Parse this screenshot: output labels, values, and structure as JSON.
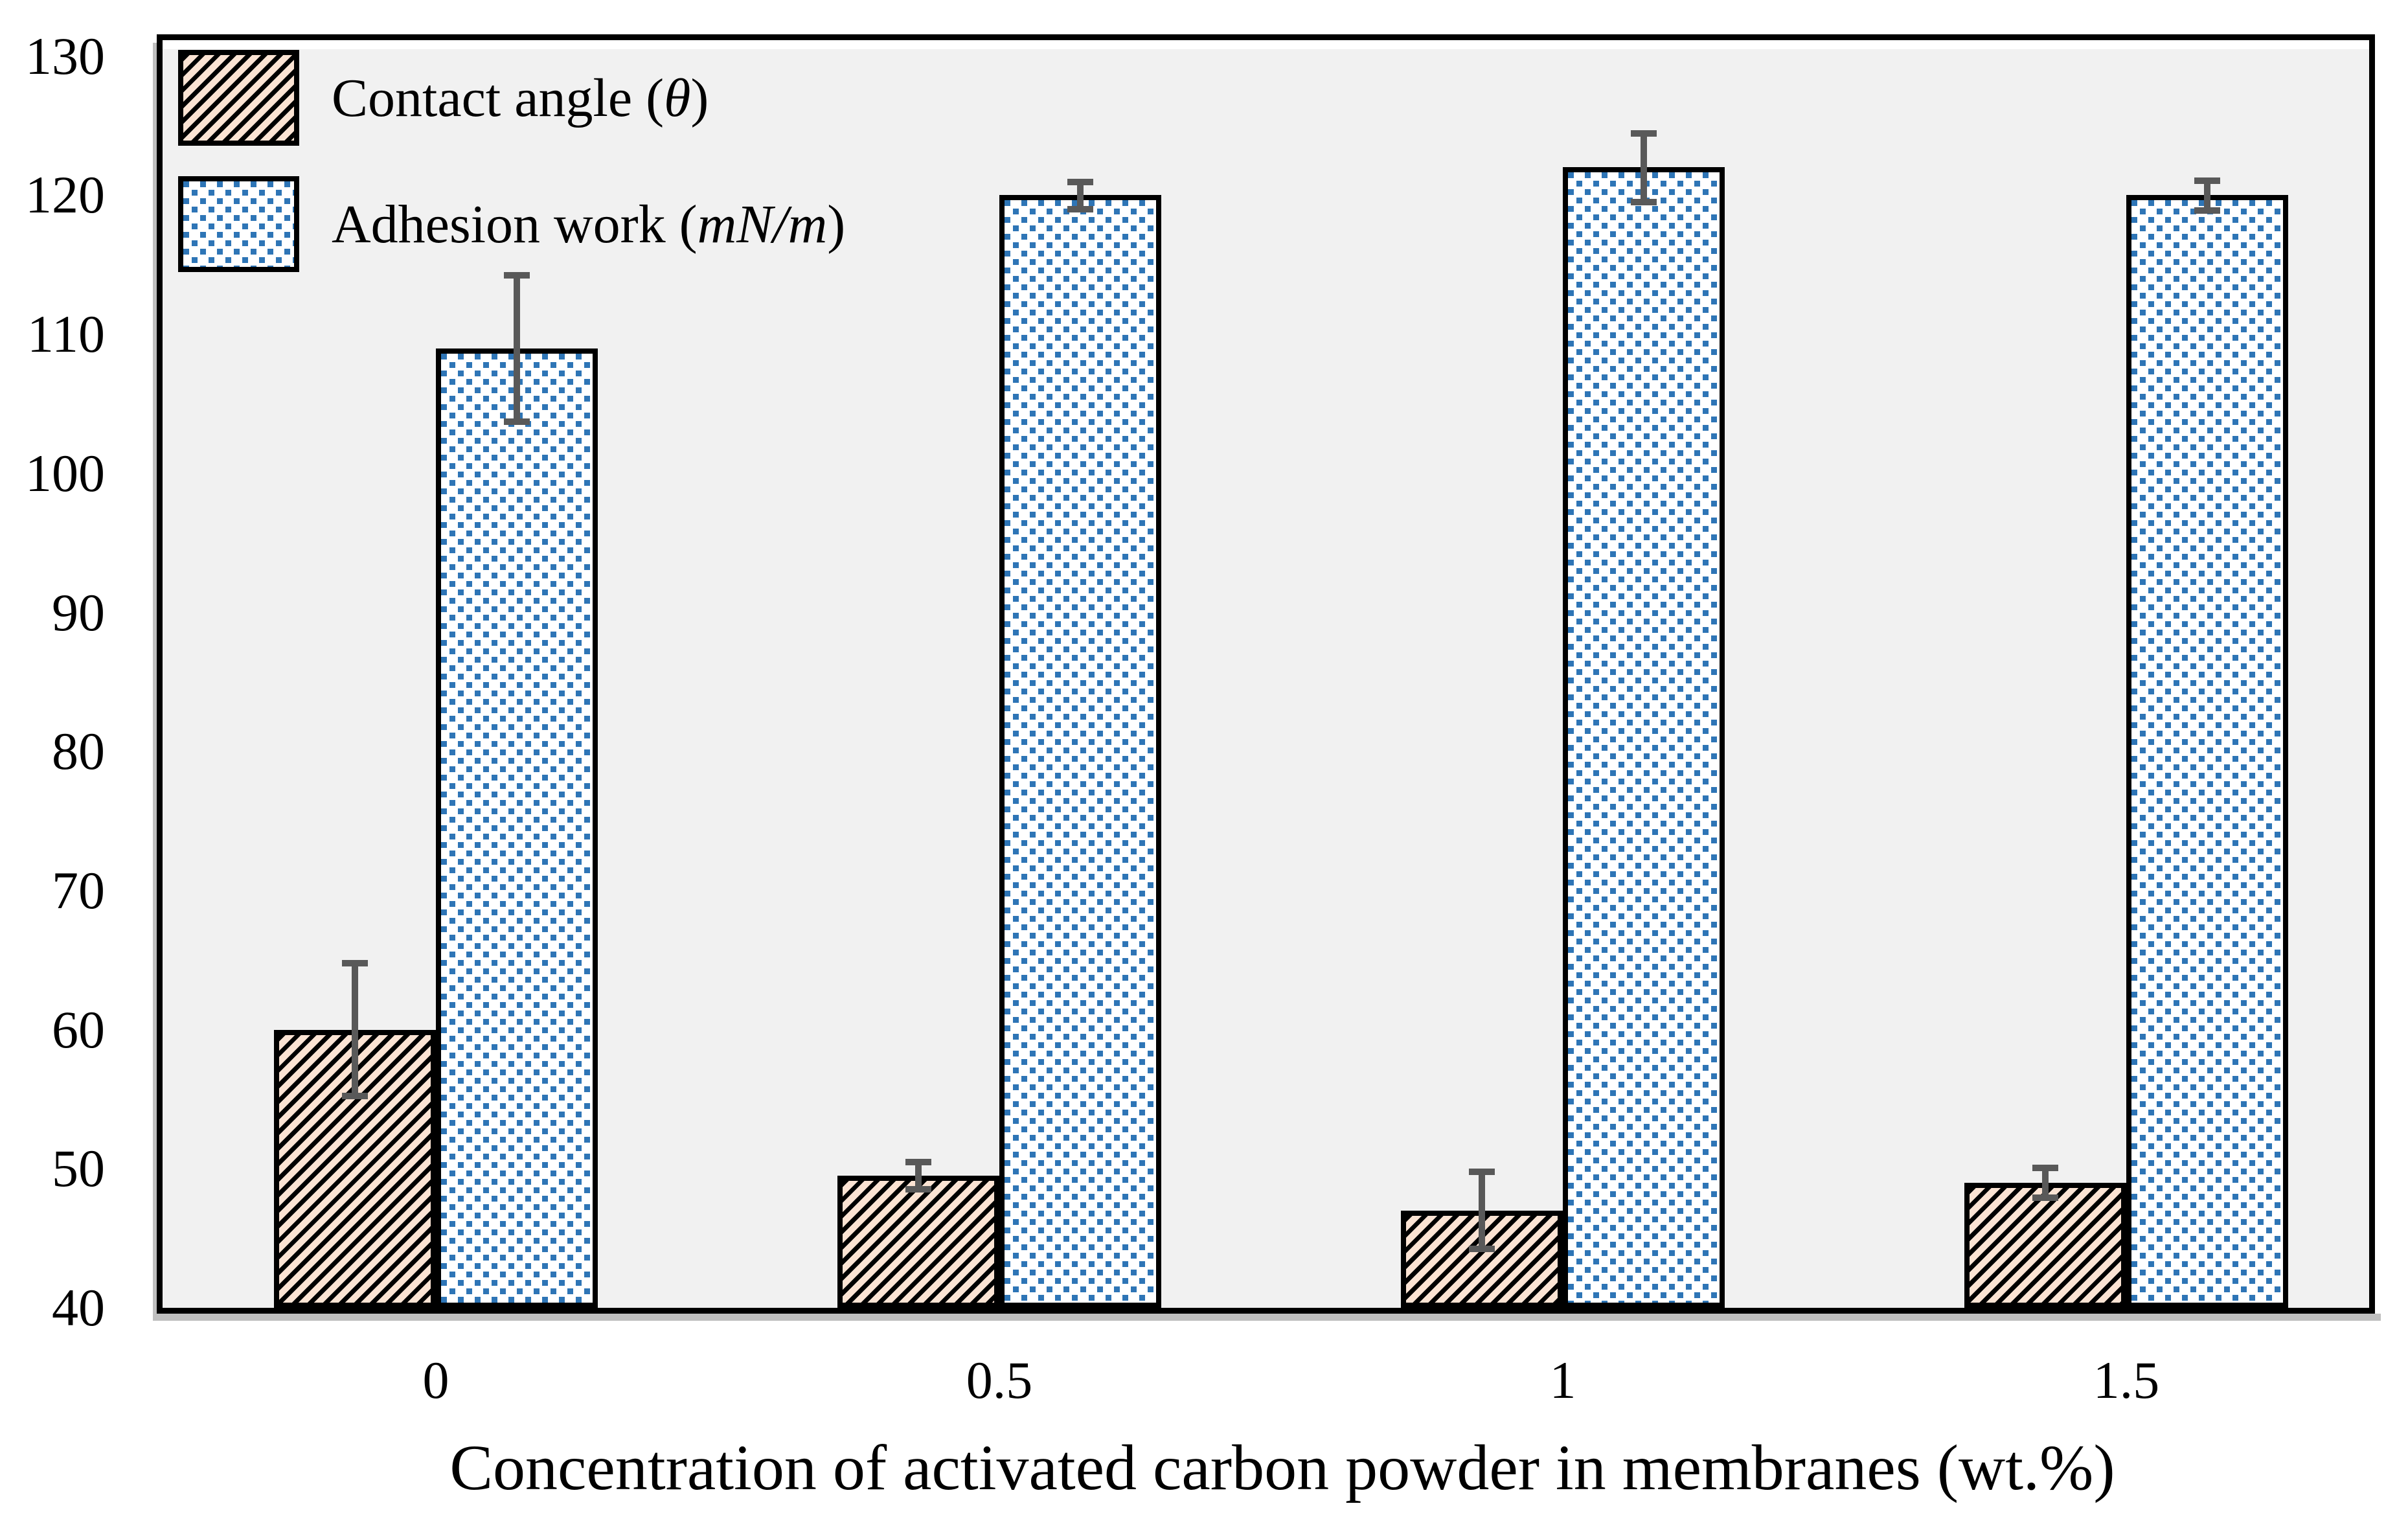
{
  "chart_data": {
    "type": "bar",
    "title": "",
    "categories": [
      "0",
      "0.5",
      "1",
      "1.5"
    ],
    "series": [
      {
        "name": "Contact angle (θ)",
        "values": [
          60,
          49.5,
          47,
          49
        ],
        "errors": [
          5,
          1.2,
          3,
          1.3
        ],
        "pattern": "black-diagonal-hatch-on-peach"
      },
      {
        "name": "Adhesion work (mN/m)",
        "values": [
          109,
          120,
          122,
          120
        ],
        "errors": [
          5.5,
          1.2,
          2.7,
          1.3
        ],
        "pattern": "blue-dots-on-white"
      }
    ],
    "xlabel": "Concentration of activated carbon powder in membranes (wt.%)",
    "ylabel": "",
    "ylim": [
      40,
      130.5
    ],
    "yticks": [
      40,
      50,
      60,
      70,
      80,
      90,
      100,
      110,
      120,
      130
    ],
    "grid": false,
    "legend_position": "top-left"
  },
  "legend": {
    "items": [
      {
        "prefix": "Contact angle (",
        "italic": "θ",
        "suffix": ")"
      },
      {
        "prefix": "Adhesion work (",
        "italic": "mN/m",
        "suffix": ")"
      }
    ]
  },
  "colors": {
    "hatch_bg": "#FBE3D3",
    "hatch_stripe": "#000000",
    "dot_blue": "#2E75B6",
    "plot_bg": "#F1F1F1",
    "frame": "#000000",
    "error_bar": "#595959",
    "shadow": "#BFBFBF"
  }
}
